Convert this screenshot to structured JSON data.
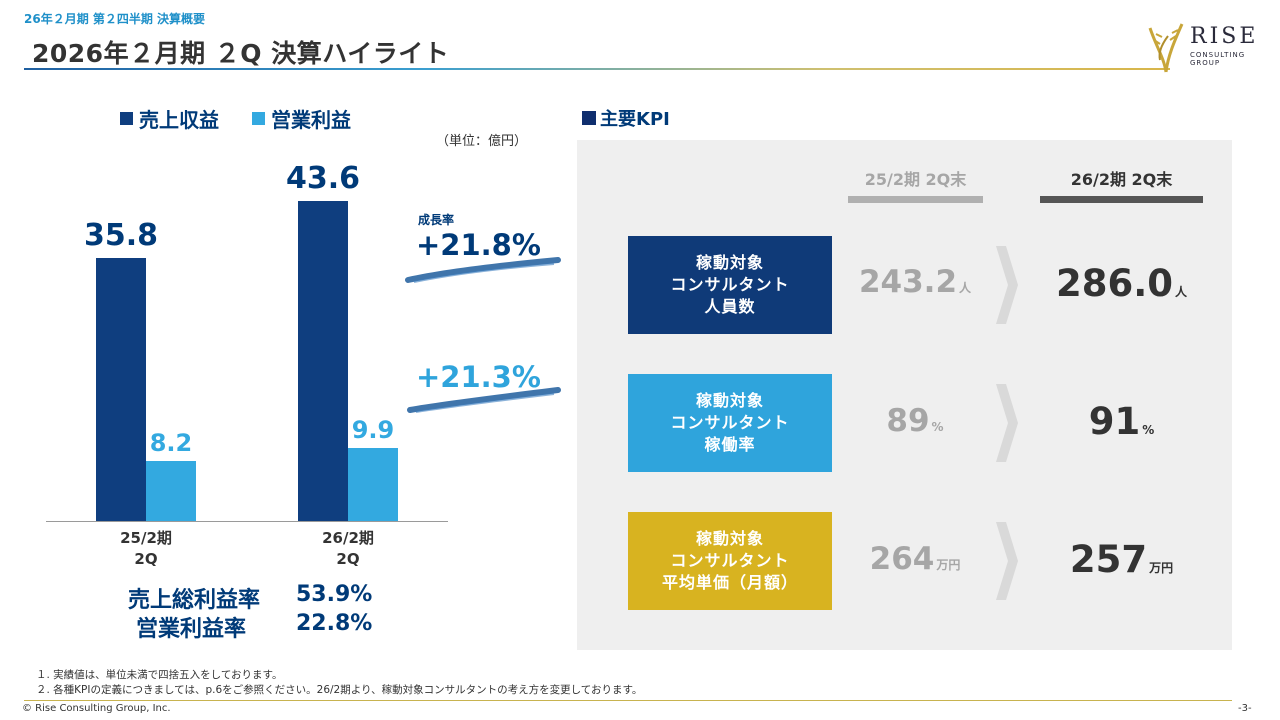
{
  "header": {
    "subtitle": "26年２月期 第２四半期 決算概要",
    "title": "2026年２月期 ２Q 決算ハイライト"
  },
  "logo": {
    "name": "RISE",
    "line1": "CONSULTING",
    "line2": "GROUP"
  },
  "chart": {
    "legend": {
      "revenue": "売上収益",
      "operating_profit": "営業利益"
    },
    "unit": "（単位：億円）",
    "growth_label": "成長率",
    "revenue_growth": "+21.8%",
    "profit_growth": "+21.3%",
    "colors": {
      "revenue": "#0f3e7f",
      "operating_profit": "#33a9e0"
    }
  },
  "chart_data": {
    "type": "bar",
    "categories": [
      "25/2期\n2Q",
      "26/2期\n2Q"
    ],
    "series": [
      {
        "name": "売上収益",
        "values": [
          35.8,
          43.6
        ],
        "labels": [
          "35.8",
          "43.6"
        ]
      },
      {
        "name": "営業利益",
        "values": [
          8.2,
          9.9
        ],
        "labels": [
          "8.2",
          "9.9"
        ]
      }
    ],
    "category_lines": [
      [
        "25/2期",
        "2Q"
      ],
      [
        "26/2期",
        "2Q"
      ]
    ],
    "ylim": [
      0,
      50
    ],
    "grid": false
  },
  "ratios": {
    "gross_label": "売上総利益率",
    "gross_value": "53.9%",
    "op_label": "営業利益率",
    "op_value": "22.8%"
  },
  "kpi": {
    "title": "主要KPI",
    "col_prev": "25/2期 2Q末",
    "col_cur": "26/2期 2Q末",
    "rows": [
      {
        "label1": "稼動対象",
        "label2": "コンサルタント",
        "label3": "人員数",
        "prev": "243.2",
        "prev_unit": "人",
        "cur": "286.0",
        "cur_unit": "人",
        "color": "#0f3a78"
      },
      {
        "label1": "稼動対象",
        "label2": "コンサルタント",
        "label3": "稼働率",
        "prev": "89",
        "prev_unit": "%",
        "cur": "91",
        "cur_unit": "%",
        "color": "#2fa4dc"
      },
      {
        "label1": "稼動対象",
        "label2": "コンサルタント",
        "label3": "平均単価（月額）",
        "prev": "264",
        "prev_unit": "万円",
        "cur": "257",
        "cur_unit": "万円",
        "color": "#d8b320"
      }
    ]
  },
  "notes": [
    "１. 実績値は、単位未満で四捨五入をしております。",
    "２. 各種KPIの定義につきましては、p.6をご参照ください。26/2期より、稼動対象コンサルタントの考え方を変更しております。"
  ],
  "footer": {
    "copyright": "© Rise Consulting Group, Inc.",
    "page": "-3-"
  }
}
